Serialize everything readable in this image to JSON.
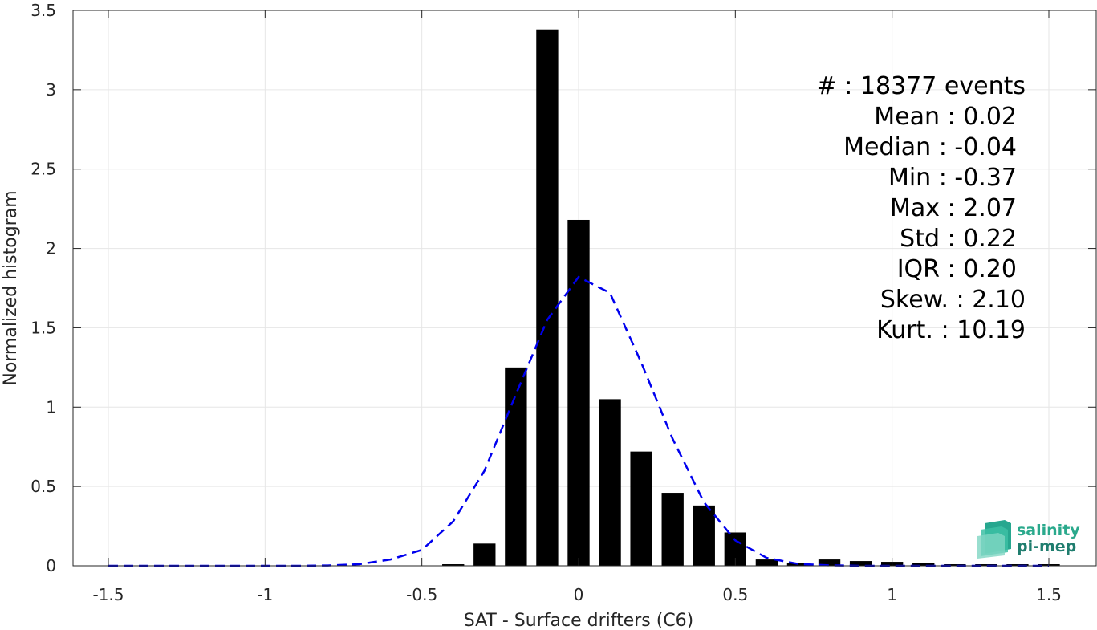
{
  "chart_data": {
    "type": "bar",
    "xlabel": "SAT - Surface drifters (C6)",
    "ylabel": "Normalized histogram",
    "xlim": [
      -1.5,
      1.5
    ],
    "ylim": [
      0,
      3.5
    ],
    "x_ticks": [
      -1.5,
      -1,
      -0.5,
      0,
      0.5,
      1,
      1.5
    ],
    "x_tick_labels": [
      "-1.5",
      "-1",
      "-0.5",
      "0",
      "0.5",
      "1",
      "1.5"
    ],
    "y_ticks": [
      0,
      0.5,
      1,
      1.5,
      2,
      2.5,
      3,
      3.5
    ],
    "y_tick_labels": [
      "0",
      "0.5",
      "1",
      "1.5",
      "2",
      "2.5",
      "3",
      "3.5"
    ],
    "grid": true,
    "bar_color": "#000000",
    "fit_color": "#0000ee",
    "bars": {
      "x": [
        -0.4,
        -0.3,
        -0.2,
        -0.1,
        0.0,
        0.1,
        0.2,
        0.3,
        0.4,
        0.5,
        0.6,
        0.7,
        0.8,
        0.9,
        1.0,
        1.1,
        1.2,
        1.3,
        1.4,
        1.5
      ],
      "values": [
        0.01,
        0.14,
        1.25,
        3.38,
        2.18,
        1.05,
        0.72,
        0.46,
        0.38,
        0.21,
        0.04,
        0.02,
        0.04,
        0.03,
        0.025,
        0.02,
        0.01,
        0.01,
        0.01,
        0.01
      ],
      "width": 0.07
    },
    "fit_curve": {
      "style": "dashed",
      "x": [
        -1.5,
        -1.4,
        -1.3,
        -1.2,
        -1.1,
        -1.0,
        -0.9,
        -0.8,
        -0.7,
        -0.6,
        -0.5,
        -0.4,
        -0.3,
        -0.2,
        -0.1,
        0.0,
        0.1,
        0.2,
        0.3,
        0.4,
        0.5,
        0.6,
        0.7,
        0.8,
        0.9,
        1.0,
        1.1,
        1.2,
        1.3,
        1.4,
        1.5
      ],
      "y": [
        0,
        0,
        0,
        0,
        0,
        0,
        0,
        0.002,
        0.01,
        0.04,
        0.1,
        0.28,
        0.6,
        1.08,
        1.55,
        1.82,
        1.72,
        1.28,
        0.8,
        0.4,
        0.16,
        0.05,
        0.012,
        0.003,
        0,
        0,
        0,
        0,
        0,
        0,
        0
      ]
    },
    "annotation_lines": [
      "#  : 18377 events",
      "Mean : 0.02",
      "Median : -0.04",
      "Min : -0.37",
      "Max : 2.07",
      "Std : 0.22",
      "IQR : 0.20",
      "Skew. : 2.10",
      "Kurt. : 10.19"
    ]
  },
  "logo": {
    "line1": "salinity",
    "line2": "pi-mep",
    "color1": "#2aa98c",
    "color2": "#1f7d6e"
  }
}
